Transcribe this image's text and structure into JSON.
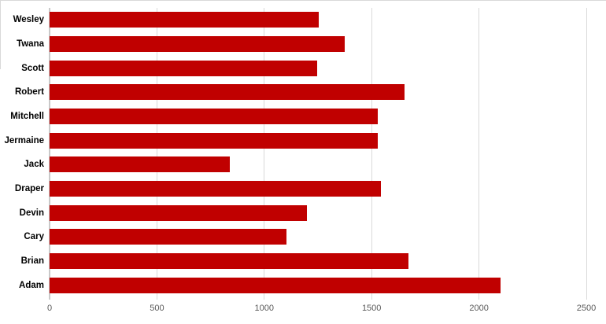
{
  "chart_data": {
    "type": "bar",
    "orientation": "horizontal",
    "title": "",
    "xlabel": "",
    "ylabel": "",
    "categories": [
      "Wesley",
      "Twana",
      "Scott",
      "Robert",
      "Mitchell",
      "Jermaine",
      "Jack",
      "Draper",
      "Devin",
      "Cary",
      "Brian",
      "Adam"
    ],
    "values": [
      1255,
      1375,
      1245,
      1655,
      1530,
      1530,
      840,
      1545,
      1200,
      1105,
      1670,
      2100
    ],
    "xlim": [
      0,
      2500
    ],
    "xticks": [
      0,
      500,
      1000,
      1500,
      2000,
      2500
    ],
    "grid": true,
    "legend": false,
    "colors": {
      "bar": "#c00000",
      "gridline": "#d9d9d9",
      "zero_axis_line": "#c9c9c9",
      "tick_label": "#595959",
      "category_label": "#000000",
      "chart_border": "#d9d9d9",
      "background": "#ffffff"
    }
  }
}
